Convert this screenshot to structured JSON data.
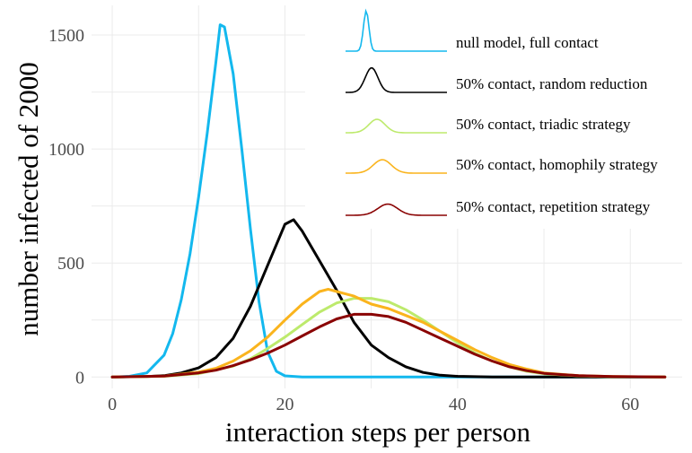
{
  "chart_data": {
    "type": "line",
    "xlabel": "interaction steps per person",
    "ylabel": "number infected of 2000",
    "xlim": [
      -2.4,
      66
    ],
    "ylim": [
      -50,
      1630
    ],
    "x_ticks": [
      0,
      20,
      40,
      60
    ],
    "y_ticks": [
      0,
      500,
      1000,
      1500
    ],
    "grid": true,
    "legend_position": "top-right",
    "series": [
      {
        "name": "null model, full contact",
        "color": "#13b8ee",
        "points": [
          [
            0,
            0
          ],
          [
            2,
            3
          ],
          [
            4,
            18
          ],
          [
            6,
            96
          ],
          [
            7,
            190
          ],
          [
            8,
            340
          ],
          [
            9,
            540
          ],
          [
            10,
            790
          ],
          [
            11,
            1070
          ],
          [
            12,
            1380
          ],
          [
            12.5,
            1545
          ],
          [
            13,
            1535
          ],
          [
            14,
            1330
          ],
          [
            15,
            1000
          ],
          [
            16,
            650
          ],
          [
            17,
            330
          ],
          [
            18,
            110
          ],
          [
            19,
            25
          ],
          [
            20,
            5
          ],
          [
            22,
            0
          ],
          [
            64,
            0
          ]
        ]
      },
      {
        "name": "50% contact, random reduction",
        "color": "#000000",
        "points": [
          [
            0,
            0
          ],
          [
            4,
            2
          ],
          [
            6,
            6
          ],
          [
            8,
            18
          ],
          [
            10,
            40
          ],
          [
            12,
            85
          ],
          [
            14,
            170
          ],
          [
            16,
            310
          ],
          [
            18,
            490
          ],
          [
            20,
            670
          ],
          [
            21,
            690
          ],
          [
            22,
            640
          ],
          [
            24,
            510
          ],
          [
            26,
            380
          ],
          [
            28,
            240
          ],
          [
            30,
            140
          ],
          [
            32,
            85
          ],
          [
            34,
            45
          ],
          [
            36,
            20
          ],
          [
            38,
            8
          ],
          [
            40,
            3
          ],
          [
            44,
            0
          ],
          [
            64,
            0
          ]
        ]
      },
      {
        "name": "50% contact, triadic strategy",
        "color": "#bdea6c",
        "points": [
          [
            0,
            0
          ],
          [
            6,
            3
          ],
          [
            10,
            15
          ],
          [
            14,
            48
          ],
          [
            16,
            80
          ],
          [
            18,
            125
          ],
          [
            20,
            175
          ],
          [
            22,
            230
          ],
          [
            24,
            285
          ],
          [
            26,
            325
          ],
          [
            28,
            345
          ],
          [
            30,
            345
          ],
          [
            32,
            330
          ],
          [
            34,
            295
          ],
          [
            36,
            250
          ],
          [
            38,
            200
          ],
          [
            40,
            150
          ],
          [
            42,
            105
          ],
          [
            44,
            70
          ],
          [
            46,
            45
          ],
          [
            48,
            25
          ],
          [
            50,
            14
          ],
          [
            54,
            5
          ],
          [
            58,
            1
          ],
          [
            64,
            0
          ]
        ]
      },
      {
        "name": "50% contact, homophily strategy",
        "color": "#fab41d",
        "points": [
          [
            0,
            0
          ],
          [
            6,
            4
          ],
          [
            10,
            22
          ],
          [
            12,
            38
          ],
          [
            14,
            70
          ],
          [
            16,
            115
          ],
          [
            18,
            175
          ],
          [
            20,
            250
          ],
          [
            22,
            320
          ],
          [
            24,
            375
          ],
          [
            25,
            385
          ],
          [
            26,
            375
          ],
          [
            28,
            355
          ],
          [
            30,
            320
          ],
          [
            32,
            300
          ],
          [
            34,
            270
          ],
          [
            36,
            240
          ],
          [
            38,
            200
          ],
          [
            40,
            160
          ],
          [
            42,
            120
          ],
          [
            44,
            85
          ],
          [
            46,
            55
          ],
          [
            48,
            35
          ],
          [
            50,
            18
          ],
          [
            54,
            6
          ],
          [
            58,
            2
          ],
          [
            64,
            0
          ]
        ]
      },
      {
        "name": "50% contact, repetition strategy",
        "color": "#8a0303",
        "points": [
          [
            0,
            0
          ],
          [
            6,
            4
          ],
          [
            10,
            18
          ],
          [
            12,
            30
          ],
          [
            14,
            50
          ],
          [
            16,
            75
          ],
          [
            18,
            105
          ],
          [
            20,
            140
          ],
          [
            22,
            180
          ],
          [
            24,
            220
          ],
          [
            26,
            255
          ],
          [
            28,
            275
          ],
          [
            30,
            275
          ],
          [
            32,
            265
          ],
          [
            34,
            240
          ],
          [
            36,
            205
          ],
          [
            38,
            170
          ],
          [
            40,
            135
          ],
          [
            42,
            100
          ],
          [
            44,
            70
          ],
          [
            46,
            45
          ],
          [
            48,
            28
          ],
          [
            50,
            16
          ],
          [
            54,
            6
          ],
          [
            58,
            2
          ],
          [
            64,
            0
          ]
        ]
      }
    ]
  }
}
